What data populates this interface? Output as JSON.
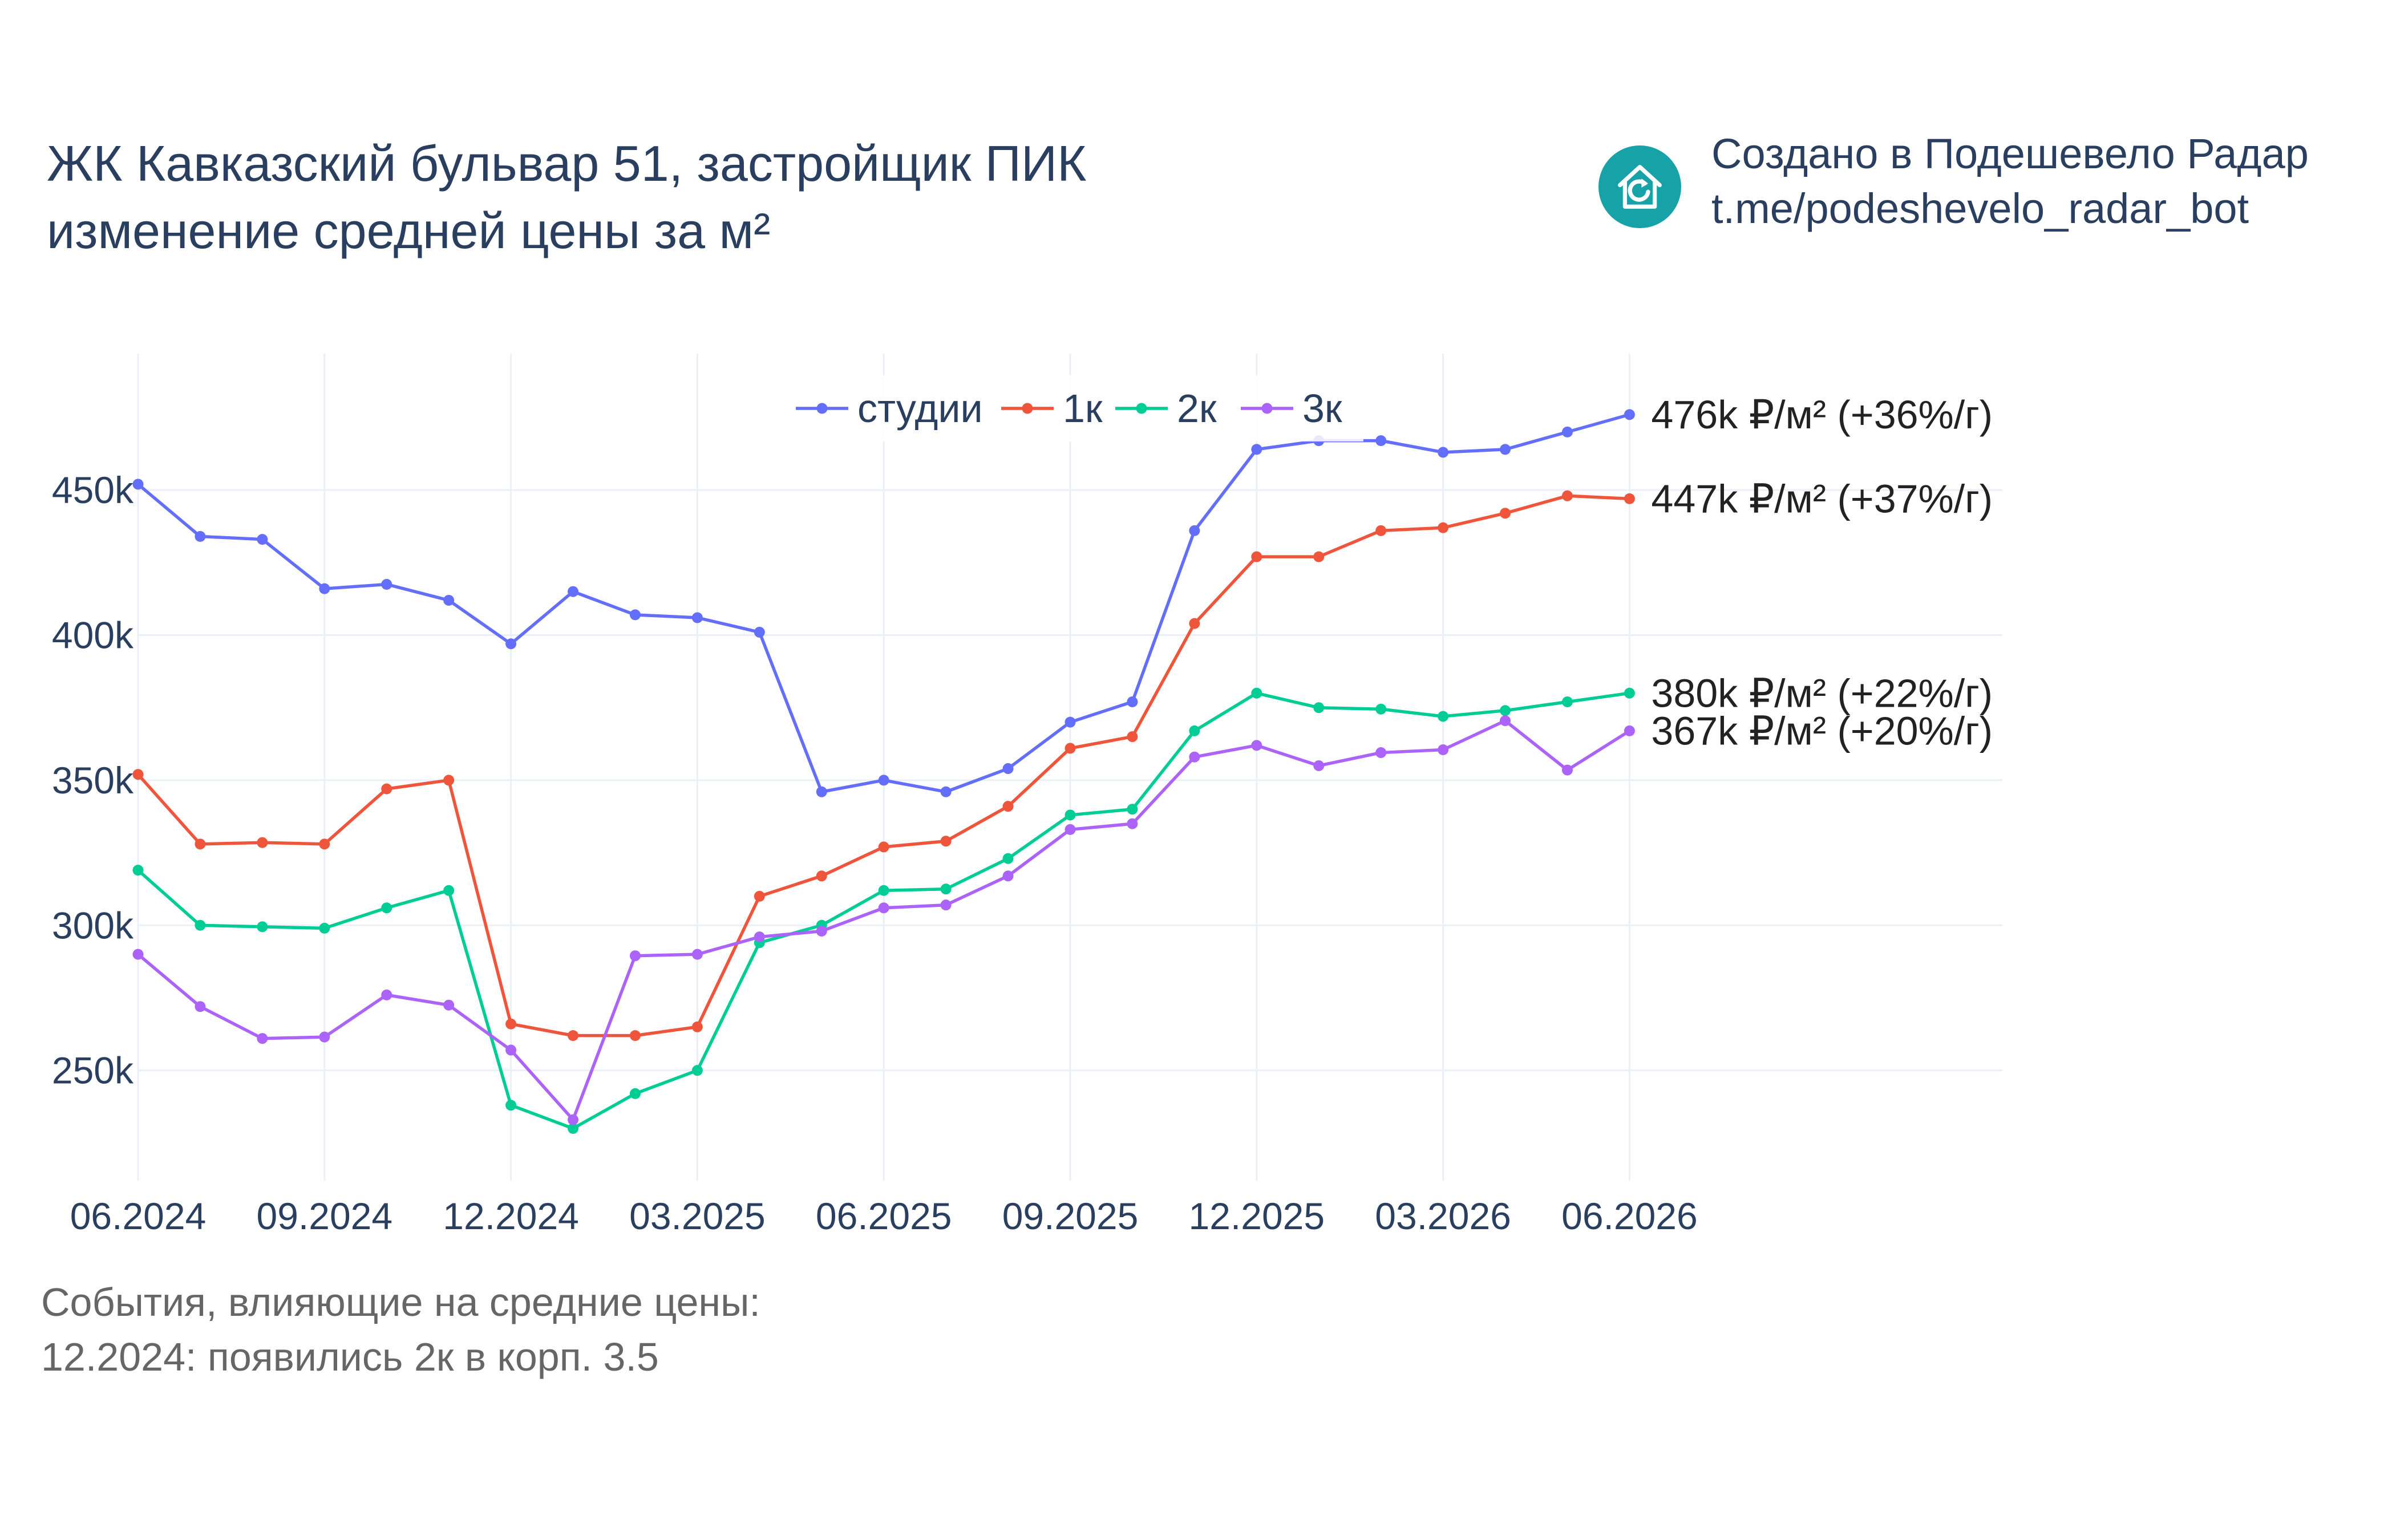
{
  "header": {
    "title_line1": "ЖК Кавказский бульвар 51, застройщик ПИК",
    "title_line2": "изменение средней цены за м²"
  },
  "branding": {
    "line1": "Создано в Подешевело Радар",
    "line2": "t.me/podeshevelo_radar_bot",
    "logo_icon": "house-refresh-icon",
    "logo_color": "#17a2a8"
  },
  "events": {
    "heading": "События, влияющие на средние цены:",
    "items": [
      "12.2024: появились 2к в корп. 3.5"
    ]
  },
  "chart_data": {
    "type": "line",
    "x": [
      "2024-06",
      "2024-07",
      "2024-08",
      "2024-09",
      "2024-10",
      "2024-11",
      "2024-12",
      "2025-01",
      "2025-02",
      "2025-03",
      "2025-04",
      "2025-05",
      "2025-06",
      "2025-07",
      "2025-08",
      "2025-09",
      "2025-10",
      "2025-11",
      "2025-12",
      "2026-01",
      "2026-02",
      "2026-03",
      "2026-04",
      "2026-05",
      "2026-06"
    ],
    "x_ticks": [
      {
        "x": "2024-06",
        "label": "06.2024"
      },
      {
        "x": "2024-09",
        "label": "09.2024"
      },
      {
        "x": "2024-12",
        "label": "12.2024"
      },
      {
        "x": "2025-03",
        "label": "03.2025"
      },
      {
        "x": "2025-06",
        "label": "06.2025"
      },
      {
        "x": "2025-09",
        "label": "09.2025"
      },
      {
        "x": "2025-12",
        "label": "12.2025"
      },
      {
        "x": "2026-03",
        "label": "03.2026"
      },
      {
        "x": "2026-06",
        "label": "06.2026"
      }
    ],
    "xlim": [
      "2024-06",
      "2026-12"
    ],
    "y_ticks": [
      {
        "value": 250000,
        "label": "250k"
      },
      {
        "value": 300000,
        "label": "300k"
      },
      {
        "value": 350000,
        "label": "350k"
      },
      {
        "value": 400000,
        "label": "400k"
      },
      {
        "value": 450000,
        "label": "450k"
      }
    ],
    "ylim": [
      212000,
      497000
    ],
    "grid": true,
    "legend_position": "top-center",
    "series": [
      {
        "name": "студии",
        "color": "#636efa",
        "values": [
          452000,
          434000,
          433000,
          416000,
          417500,
          412000,
          397000,
          415000,
          407000,
          406000,
          401000,
          346000,
          350000,
          346000,
          354000,
          370000,
          377000,
          436000,
          464000,
          467000,
          467000,
          463000,
          464000,
          470000,
          476000
        ],
        "end_label": "476k ₽/м² (+36%/г)"
      },
      {
        "name": "1к",
        "color": "#ef553b",
        "values": [
          352000,
          328000,
          328500,
          328000,
          347000,
          350000,
          266000,
          262000,
          262000,
          265000,
          310000,
          317000,
          327000,
          329000,
          341000,
          361000,
          365000,
          404000,
          427000,
          427000,
          436000,
          437000,
          442000,
          448000,
          447000
        ],
        "end_label": "447k ₽/м² (+37%/г)"
      },
      {
        "name": "2к",
        "color": "#00cc96",
        "values": [
          319000,
          300000,
          299500,
          299000,
          306000,
          312000,
          238000,
          230000,
          242000,
          250000,
          294000,
          300000,
          312000,
          312500,
          323000,
          338000,
          340000,
          367000,
          380000,
          375000,
          374500,
          372000,
          374000,
          377000,
          380000
        ],
        "end_label": "380k ₽/м² (+22%/г)"
      },
      {
        "name": "3к",
        "color": "#ab63fa",
        "values": [
          290000,
          272000,
          261000,
          261500,
          276000,
          272500,
          257000,
          233000,
          289500,
          290000,
          296000,
          298000,
          306000,
          307000,
          317000,
          333000,
          335000,
          358000,
          362000,
          355000,
          359500,
          360500,
          370500,
          353500,
          367000
        ],
        "end_label": "367k ₽/м² (+20%/г)"
      }
    ]
  }
}
